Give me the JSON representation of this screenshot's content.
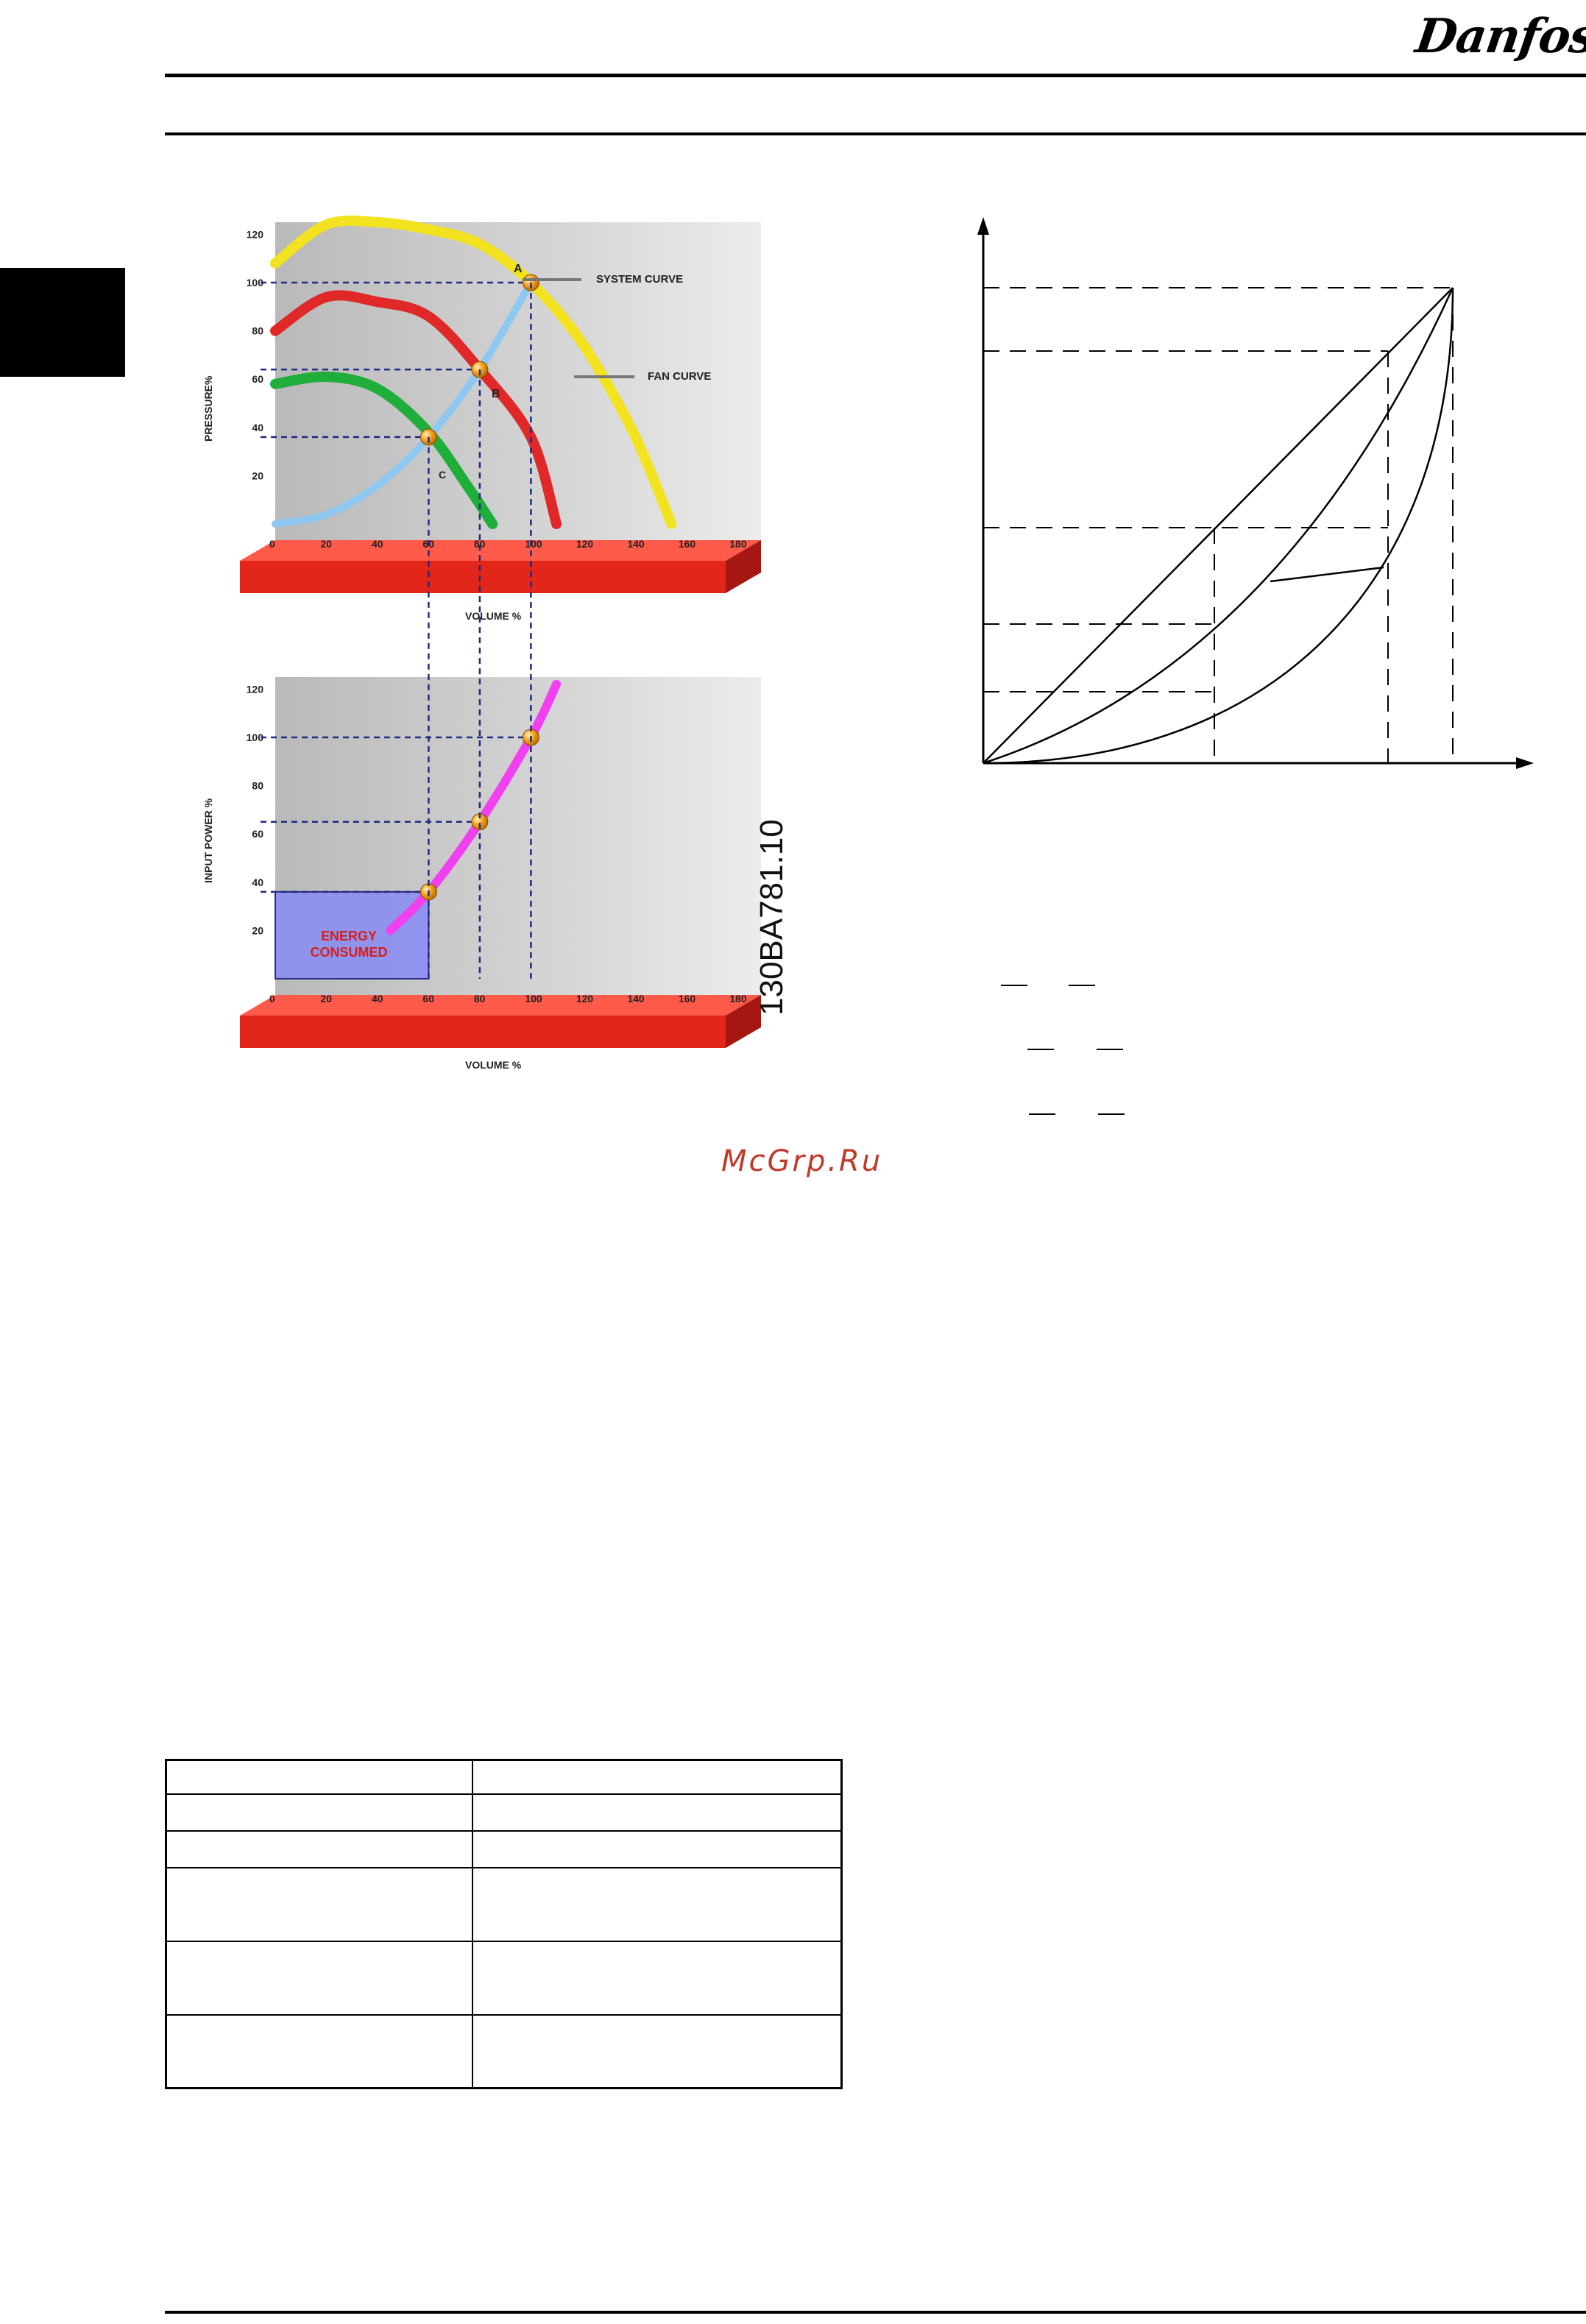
{
  "header": {
    "brand": "Danfoss"
  },
  "figure_left": {
    "id_label": "130BA781.10",
    "top_chart": {
      "y_axis_title": "PRESSURE%",
      "x_axis_title": "VOLUME %",
      "y_ticks": [
        "120",
        "100",
        "80",
        "60",
        "40",
        "20"
      ],
      "x_ticks": [
        "0",
        "20",
        "40",
        "60",
        "80",
        "100",
        "120",
        "140",
        "160",
        "180"
      ],
      "labels": {
        "system_curve": "SYSTEM CURVE",
        "fan_curve": "FAN CURVE",
        "point_a": "A",
        "point_b": "B",
        "point_c": "C"
      },
      "colors": {
        "system_curve": "#8ec8f0",
        "fan_100": "#f2e21f",
        "fan_80": "#e02828",
        "fan_60": "#1fae3a",
        "platform": "#e8261c"
      }
    },
    "bottom_chart": {
      "y_axis_title": "INPUT POWER %",
      "x_axis_title": "VOLUME %",
      "y_ticks": [
        "120",
        "100",
        "80",
        "60",
        "40",
        "20"
      ],
      "x_ticks": [
        "0",
        "20",
        "40",
        "60",
        "80",
        "100",
        "120",
        "140",
        "160",
        "180"
      ],
      "energy_label_1": "ENERGY",
      "energy_label_2": "CONSUMED",
      "colors": {
        "power_curve": "#f040f0",
        "energy_box": "#8a8ef0",
        "energy_text": "#d42020"
      }
    }
  },
  "chart_data": [
    {
      "type": "line",
      "title": "",
      "xlabel": "VOLUME %",
      "ylabel": "PRESSURE%",
      "xlim": [
        0,
        180
      ],
      "ylim": [
        0,
        120
      ],
      "series": [
        {
          "name": "SYSTEM CURVE",
          "x": [
            0,
            20,
            40,
            60,
            80,
            100
          ],
          "y": [
            0,
            4,
            16,
            36,
            64,
            100
          ]
        },
        {
          "name": "FAN CURVE",
          "x": [
            0,
            20,
            40,
            60,
            80,
            100,
            120,
            140,
            155
          ],
          "y": [
            108,
            124,
            125,
            122,
            116,
            100,
            75,
            38,
            0
          ]
        },
        {
          "x": [
            0,
            20,
            40,
            60,
            80,
            100,
            110
          ],
          "y": [
            80,
            94,
            92,
            86,
            64,
            36,
            0
          ]
        },
        {
          "x": [
            0,
            20,
            40,
            60,
            75,
            85
          ],
          "y": [
            58,
            61,
            56,
            38,
            16,
            0
          ]
        }
      ],
      "points": [
        {
          "label": "A",
          "x": 100,
          "y": 100
        },
        {
          "label": "B",
          "x": 80,
          "y": 64
        },
        {
          "label": "C",
          "x": 60,
          "y": 36
        }
      ]
    },
    {
      "type": "line",
      "title": "",
      "xlabel": "VOLUME %",
      "ylabel": "INPUT POWER %",
      "xlim": [
        0,
        180
      ],
      "ylim": [
        0,
        120
      ],
      "series": [
        {
          "x": [
            45,
            60,
            80,
            100,
            110
          ],
          "y": [
            20,
            36,
            65,
            100,
            122
          ]
        }
      ],
      "points": [
        {
          "x": 60,
          "y": 36
        },
        {
          "x": 80,
          "y": 65
        },
        {
          "x": 100,
          "y": 100
        }
      ]
    }
  ],
  "table": {
    "rows": [
      [
        "",
        ""
      ],
      [
        "",
        ""
      ],
      [
        "",
        ""
      ],
      [
        "",
        ""
      ],
      [
        "",
        ""
      ],
      [
        "",
        ""
      ]
    ]
  },
  "footer": {},
  "watermark": "McGrp.Ru"
}
